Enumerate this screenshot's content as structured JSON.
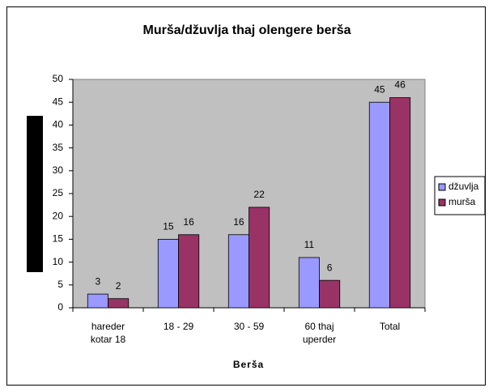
{
  "chart_data": {
    "type": "bar",
    "title": "Murša/džuvlja thaj olengere berša",
    "x_label": "Berša",
    "categories": [
      "hareder kotar 18",
      "18 - 29",
      "30 - 59",
      "60 thaj uperder",
      "Total"
    ],
    "series": [
      {
        "name": "džuvlja",
        "color": "#9999ff",
        "values": [
          3,
          15,
          16,
          11,
          45
        ]
      },
      {
        "name": "murša",
        "color": "#993366",
        "values": [
          2,
          16,
          22,
          6,
          46
        ]
      }
    ],
    "ylim": [
      0,
      50
    ],
    "yticks": [
      0,
      5,
      10,
      15,
      20,
      25,
      30,
      35,
      40,
      45,
      50
    ],
    "grid": false,
    "legend": "right"
  }
}
